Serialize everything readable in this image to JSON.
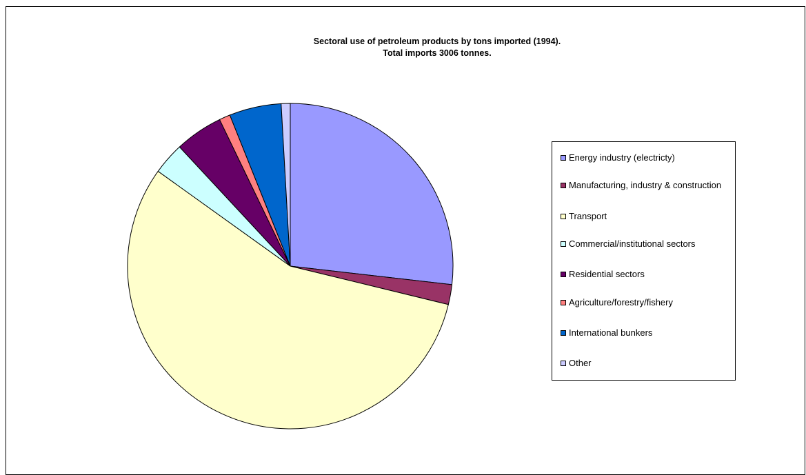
{
  "chart_data": {
    "type": "pie",
    "title": "Sectoral use of petroleum products by  tons imported (1994).",
    "subtitle": "Total imports 3006 tonnes.",
    "legend_position": "right",
    "categories": [
      "Energy industry (electricty)",
      "Manufacturing, industry & construction",
      "Transport",
      "Commercial/institutional sectors",
      "Residential sectors",
      "Agriculture/forestry/fishery",
      "International bunkers",
      "Other"
    ],
    "values": [
      27.0,
      2.0,
      56.5,
      3.2,
      4.8,
      1.1,
      5.2,
      0.9
    ],
    "colors": [
      "#9999FF",
      "#993366",
      "#FFFFCC",
      "#CCFFFF",
      "#660066",
      "#FF8080",
      "#0066CC",
      "#CCCCFF"
    ]
  }
}
